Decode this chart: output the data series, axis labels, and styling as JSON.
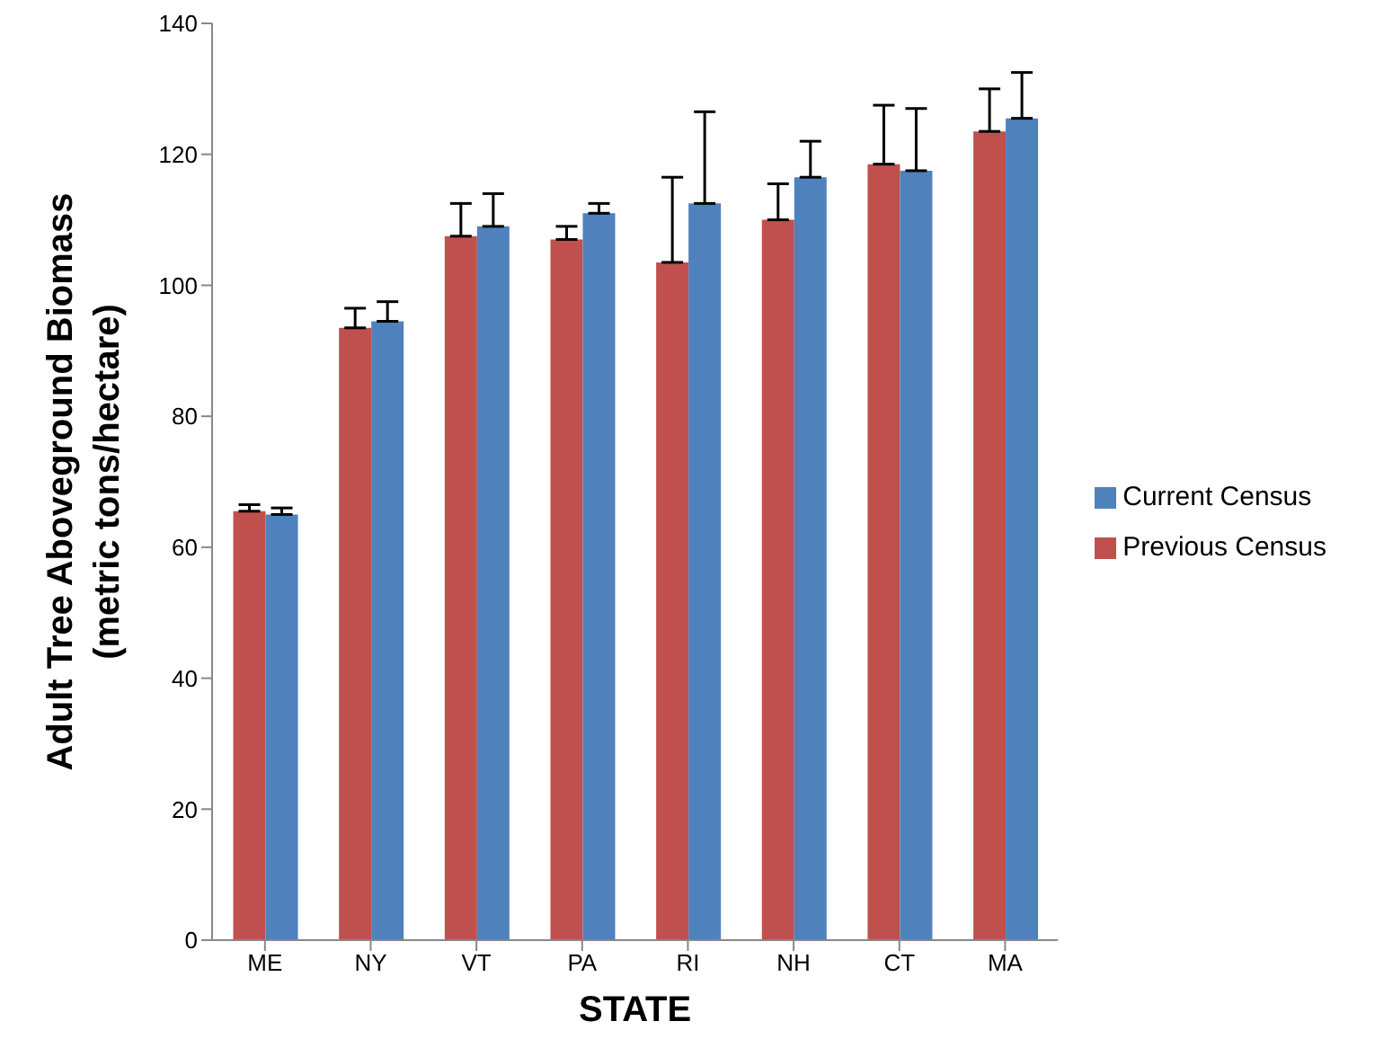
{
  "chart_data": {
    "type": "bar",
    "xlabel": "STATE",
    "ylabel": "Adult Tree Aboveground Biomass\n(metric tons/hectare)",
    "categories": [
      "ME",
      "NY",
      "VT",
      "PA",
      "RI",
      "NH",
      "CT",
      "MA"
    ],
    "series": [
      {
        "name": "Previous Census",
        "color": "#c0504d",
        "values": [
          65.5,
          93.5,
          107.5,
          107,
          103.5,
          110,
          118.5,
          123.5
        ],
        "errors": [
          [
            65.5,
            66.5
          ],
          [
            93.5,
            96.5
          ],
          [
            107.5,
            112.5
          ],
          [
            107,
            109
          ],
          [
            103.5,
            116.5
          ],
          [
            110,
            115.5
          ],
          [
            118.5,
            127.5
          ],
          [
            123.5,
            130
          ]
        ]
      },
      {
        "name": "Current Census",
        "color": "#4f81bd",
        "values": [
          65,
          94.5,
          109,
          111,
          112.5,
          116.5,
          117.5,
          125.5
        ],
        "errors": [
          [
            65,
            66
          ],
          [
            94.5,
            97.5
          ],
          [
            109,
            114
          ],
          [
            111,
            112.5
          ],
          [
            112.5,
            126.5
          ],
          [
            116.5,
            122
          ],
          [
            117.5,
            127
          ],
          [
            125.5,
            132.5
          ]
        ]
      }
    ],
    "ylim": [
      0,
      140
    ],
    "yticks": [
      0,
      20,
      40,
      60,
      80,
      100,
      120,
      140
    ],
    "grid": false,
    "legend": "right"
  }
}
